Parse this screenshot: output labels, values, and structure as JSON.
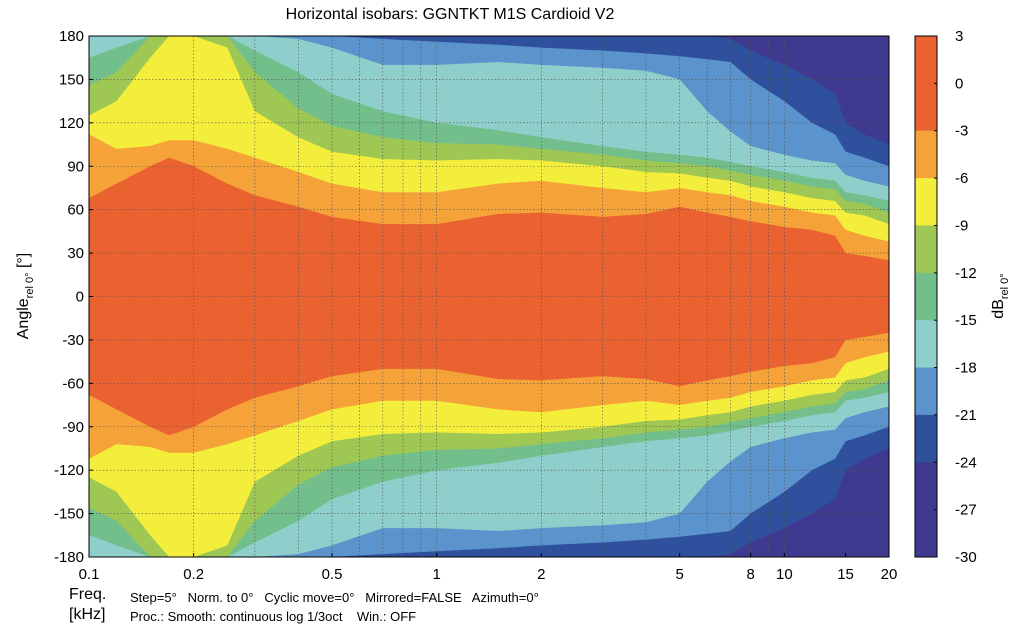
{
  "chart_data": {
    "type": "heatmap",
    "title": "Horizontal isobars: GGNTKT  M1S  Cardioid V2",
    "ylabel": {
      "main": "Angle",
      "sub": "rel 0°",
      "tail": " [°]"
    },
    "colorbar_label": {
      "main": "dB",
      "sub": "rel 0°"
    },
    "x_scale": "log",
    "xlim": [
      0.1,
      20
    ],
    "ylim": [
      -180,
      180
    ],
    "x_ticks": [
      {
        "v": 0.1,
        "label": "0.1"
      },
      {
        "v": 0.2,
        "label": "0.2"
      },
      {
        "v": 0.5,
        "label": "0.5"
      },
      {
        "v": 1,
        "label": "1"
      },
      {
        "v": 2,
        "label": "2"
      },
      {
        "v": 5,
        "label": "5"
      },
      {
        "v": 8,
        "label": "8"
      },
      {
        "v": 10,
        "label": "10"
      },
      {
        "v": 15,
        "label": "15"
      },
      {
        "v": 20,
        "label": "20"
      }
    ],
    "x_grid": [
      0.1,
      0.2,
      0.3,
      0.4,
      0.5,
      0.6,
      0.7,
      0.8,
      0.9,
      1,
      2,
      3,
      4,
      5,
      6,
      7,
      8,
      9,
      10,
      20
    ],
    "y_ticks": [
      180,
      150,
      120,
      90,
      60,
      30,
      0,
      -30,
      -60,
      -90,
      -120,
      -150,
      -180
    ],
    "y_tick_labels": [
      "180",
      "150",
      "120",
      "90",
      "60",
      "30",
      "0",
      "-30",
      "-60",
      "-90",
      "-120",
      "-150",
      "-180"
    ],
    "grid": true,
    "colorbar": {
      "min": -30,
      "max": 3,
      "levels": [
        {
          "lo": 0,
          "hi": 3,
          "color": "#ea6230"
        },
        {
          "lo": -3,
          "hi": 0,
          "color": "#ea6230"
        },
        {
          "lo": -6,
          "hi": -3,
          "color": "#f5a238"
        },
        {
          "lo": -9,
          "hi": -6,
          "color": "#f3ee3c"
        },
        {
          "lo": -12,
          "hi": -9,
          "color": "#9ec753"
        },
        {
          "lo": -15,
          "hi": -12,
          "color": "#73bf8c"
        },
        {
          "lo": -18,
          "hi": -15,
          "color": "#8ecfcb"
        },
        {
          "lo": -21,
          "hi": -18,
          "color": "#5b93cc"
        },
        {
          "lo": -24,
          "hi": -21,
          "color": "#2f509c"
        },
        {
          "lo": -27,
          "hi": -24,
          "color": "#3f3a8f"
        },
        {
          "lo": -30,
          "hi": -27,
          "color": "#3f3a8f"
        }
      ],
      "tick_labels": [
        "3",
        "0",
        "-3",
        "-6",
        "-9",
        "-12",
        "-15",
        "-18",
        "-21",
        "-24",
        "-27",
        "-30"
      ]
    },
    "contour_widths": {
      "comment_units": "half-width in degrees of the region at or above each level, per frequency (kHz)",
      "freqs": [
        0.1,
        0.12,
        0.15,
        0.17,
        0.2,
        0.25,
        0.3,
        0.4,
        0.5,
        0.7,
        1,
        1.5,
        2,
        3,
        4,
        5,
        6,
        7,
        8,
        10,
        12,
        14,
        15,
        17,
        20
      ],
      "levels": [
        {
          "level": -3,
          "half_width": [
            68,
            78,
            90,
            96,
            90,
            78,
            70,
            62,
            55,
            50,
            50,
            57,
            58,
            55,
            57,
            62,
            58,
            55,
            52,
            48,
            46,
            42,
            30,
            28,
            25
          ]
        },
        {
          "level": -6,
          "half_width": [
            112,
            102,
            104,
            108,
            108,
            102,
            96,
            86,
            78,
            72,
            72,
            78,
            80,
            75,
            72,
            75,
            72,
            70,
            66,
            62,
            58,
            56,
            46,
            42,
            38
          ]
        },
        {
          "level": -9,
          "half_width": [
            125,
            135,
            165,
            180,
            180,
            172,
            128,
            110,
            100,
            95,
            94,
            95,
            94,
            90,
            86,
            85,
            82,
            80,
            76,
            72,
            68,
            66,
            58,
            56,
            50
          ]
        },
        {
          "level": -12,
          "half_width": [
            146,
            155,
            180,
            180,
            180,
            180,
            155,
            130,
            118,
            110,
            106,
            105,
            102,
            98,
            94,
            92,
            90,
            87,
            84,
            80,
            76,
            74,
            66,
            64,
            58
          ]
        },
        {
          "level": -15,
          "half_width": [
            165,
            172,
            180,
            180,
            180,
            180,
            170,
            155,
            140,
            128,
            120,
            115,
            110,
            104,
            100,
            98,
            96,
            93,
            90,
            86,
            82,
            80,
            72,
            70,
            66
          ]
        },
        {
          "level": -18,
          "half_width": [
            180,
            180,
            180,
            180,
            180,
            180,
            180,
            178,
            172,
            160,
            160,
            162,
            160,
            158,
            156,
            150,
            128,
            114,
            104,
            98,
            94,
            92,
            84,
            80,
            76
          ]
        },
        {
          "level": -21,
          "half_width": [
            180,
            180,
            180,
            180,
            180,
            180,
            180,
            180,
            180,
            178,
            176,
            174,
            172,
            170,
            168,
            166,
            164,
            162,
            150,
            135,
            120,
            112,
            100,
            96,
            90
          ]
        },
        {
          "level": -24,
          "half_width": [
            180,
            180,
            180,
            180,
            180,
            180,
            180,
            180,
            180,
            180,
            180,
            180,
            180,
            180,
            180,
            180,
            180,
            178,
            170,
            160,
            150,
            140,
            120,
            112,
            105
          ]
        }
      ]
    }
  },
  "footer": {
    "freq_label": "Freq.",
    "khz_label": "[kHz]",
    "line1": "Step=5°   Norm. to 0°   Cyclic move=0°   Mirrored=FALSE   Azimuth=0°",
    "line2": "Proc.: Smooth: continuous log 1/3oct    Win.: OFF"
  }
}
